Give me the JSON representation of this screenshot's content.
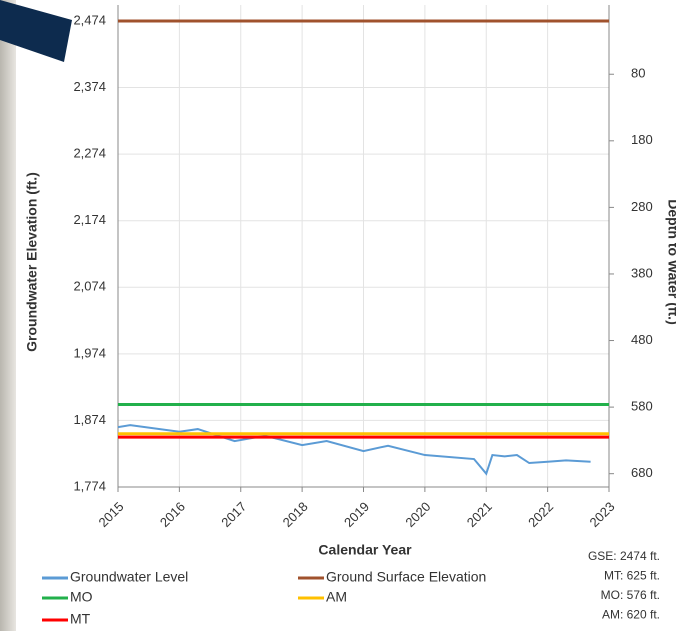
{
  "chart_data": {
    "type": "line",
    "x_label": "Calendar Year",
    "y_label": "Groundwater Elevation (ft.)",
    "y2_label": "Depth to Water (ft.)",
    "xlim": [
      2015,
      2023
    ],
    "xticks": [
      2015,
      2016,
      2017,
      2018,
      2019,
      2020,
      2021,
      2022,
      2023
    ],
    "ylim": [
      1774,
      2498
    ],
    "yticks": [
      {
        "value": 1774,
        "label": "1,774"
      },
      {
        "value": 1874,
        "label": "1,874"
      },
      {
        "value": 1974,
        "label": "1,974"
      },
      {
        "value": 2074,
        "label": "2,074"
      },
      {
        "value": 2174,
        "label": "2,174"
      },
      {
        "value": 2274,
        "label": "2,274"
      },
      {
        "value": 2374,
        "label": "2,374"
      },
      {
        "value": 2474,
        "label": "2,474"
      }
    ],
    "y2lim": [
      700,
      -24
    ],
    "y2ticks": [
      80,
      180,
      280,
      380,
      480,
      580,
      680
    ],
    "grid": true,
    "series": [
      {
        "name": "Groundwater Level",
        "color": "#5b9bd5",
        "x": [
          2015.0,
          2015.2,
          2016.0,
          2016.3,
          2016.9,
          2017.4,
          2018.0,
          2018.4,
          2019.0,
          2019.4,
          2020.0,
          2020.8,
          2021.0,
          2021.1,
          2021.3,
          2021.5,
          2021.7,
          2022.0,
          2022.3,
          2022.7
        ],
        "values": [
          1864,
          1867,
          1857,
          1861,
          1843,
          1851,
          1837,
          1843,
          1828,
          1836,
          1822,
          1816,
          1794,
          1822,
          1820,
          1822,
          1810,
          1812,
          1814,
          1812
        ]
      },
      {
        "name": "Ground Surface Elevation",
        "color": "#a0522d",
        "x": [
          2015,
          2023
        ],
        "values": [
          2474,
          2474
        ]
      },
      {
        "name": "MO",
        "color": "#22b04b",
        "x": [
          2015,
          2023
        ],
        "values": [
          1898,
          1898
        ]
      },
      {
        "name": "AM",
        "color": "#ffc000",
        "x": [
          2015,
          2023
        ],
        "values": [
          1854,
          1854
        ]
      },
      {
        "name": "MT",
        "color": "#ff0000",
        "x": [
          2015,
          2023
        ],
        "values": [
          1849,
          1849
        ]
      }
    ],
    "annotations": [
      "GSE: 2474 ft.",
      "MT: 625 ft.",
      "MO: 576 ft.",
      "AM: 620 ft."
    ]
  }
}
